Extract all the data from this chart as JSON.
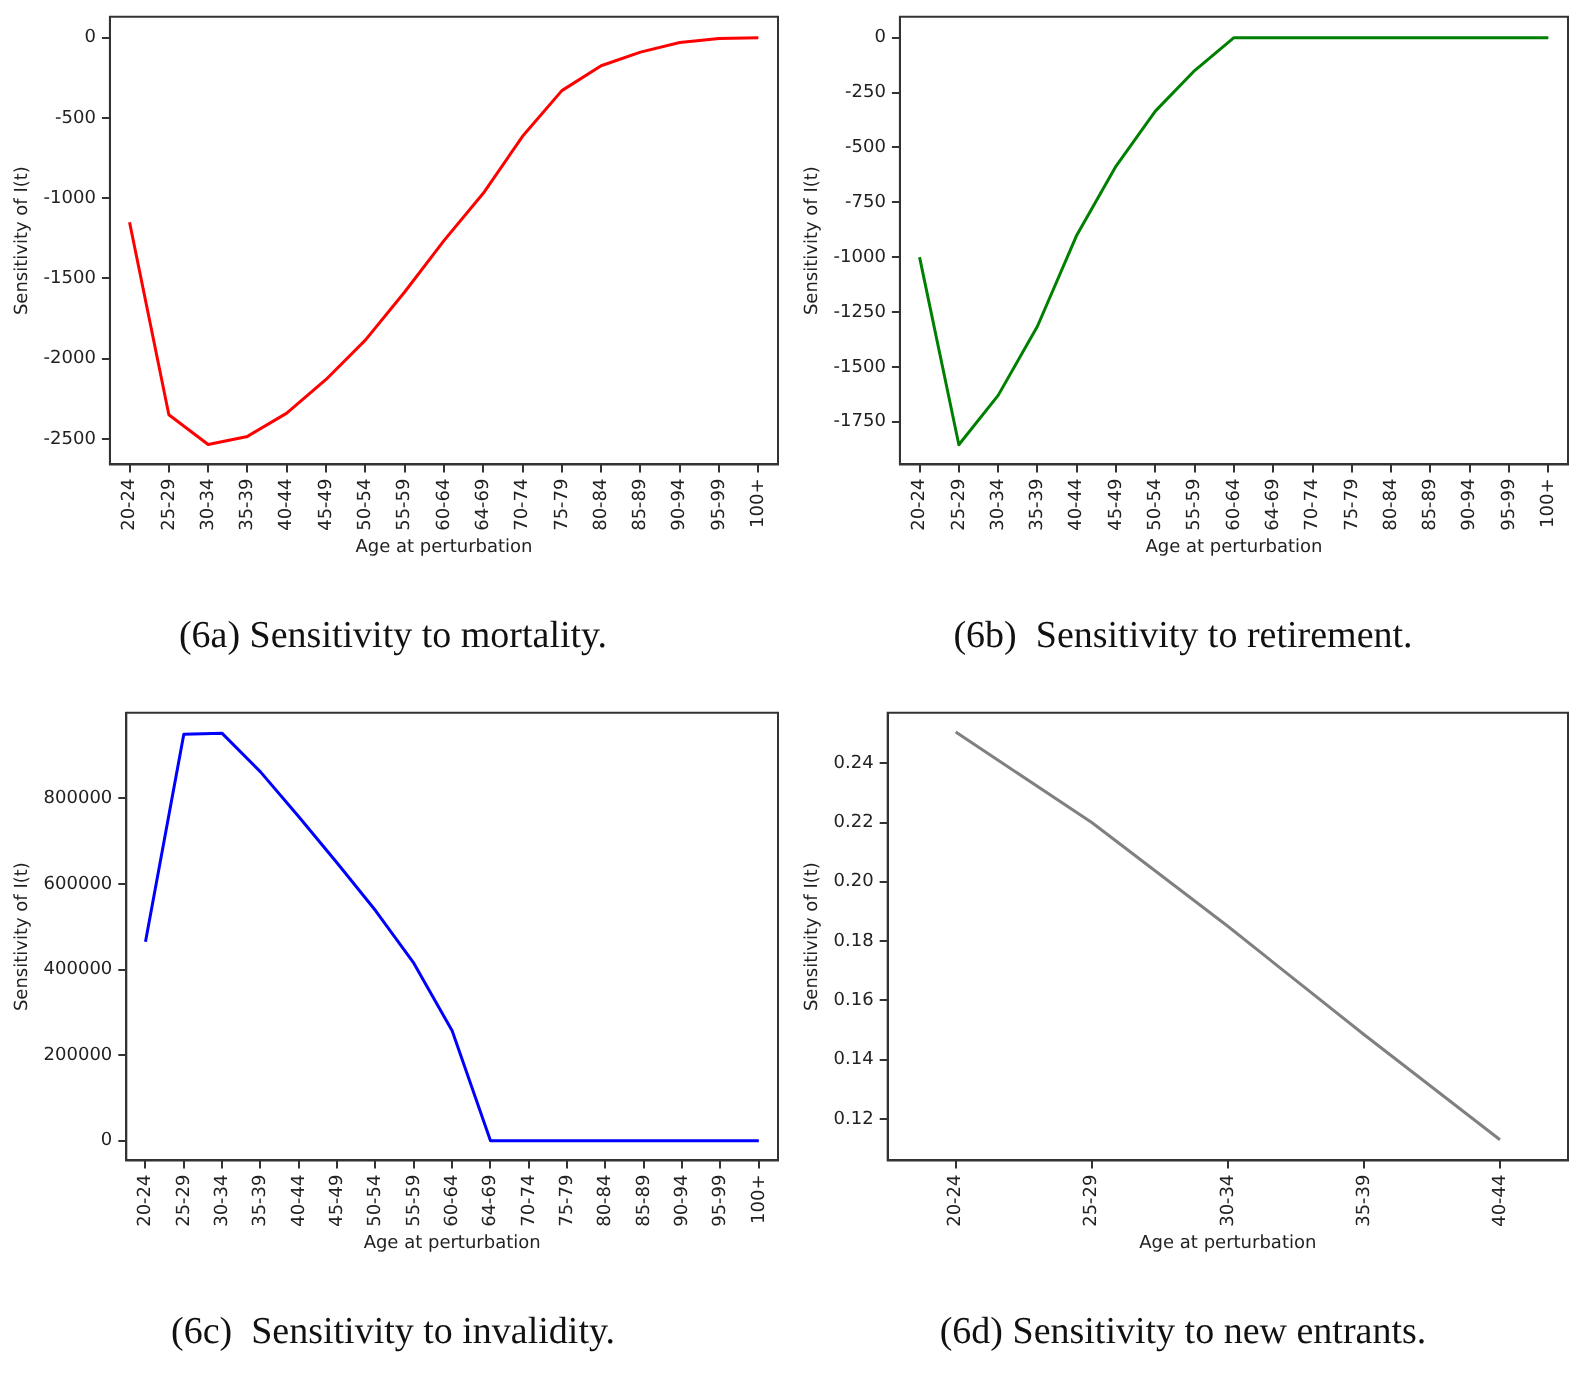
{
  "chart_data": [
    {
      "type": "line",
      "title": "(6a) Sensitivity to mortality.",
      "xlabel": "Age at perturbation",
      "ylabel": "Sensitivity of I(t)",
      "categories": [
        "20-24",
        "25-29",
        "30-34",
        "35-39",
        "40-44",
        "45-49",
        "50-54",
        "55-59",
        "60-64",
        "64-69",
        "70-74",
        "75-79",
        "80-84",
        "85-89",
        "90-94",
        "95-99",
        "100+"
      ],
      "series": [
        {
          "color": "#ff0000",
          "values": [
            -1150,
            -2350,
            -2535,
            -2485,
            -2340,
            -2130,
            -1885,
            -1585,
            -1265,
            -970,
            -615,
            -330,
            -175,
            -90,
            -30,
            -5,
            0
          ]
        }
      ],
      "ylim": [
        -2660,
        130
      ],
      "yticks": [
        0,
        -500,
        -1000,
        -1500,
        -2000,
        -2500
      ],
      "grid": false,
      "legend": false,
      "marker": "none",
      "line_style": "solid"
    },
    {
      "type": "line",
      "title": "(6b)  Sensitivity to retirement.",
      "xlabel": "Age at perturbation",
      "ylabel": "Sensitivity of I(t)",
      "categories": [
        "20-24",
        "25-29",
        "30-34",
        "35-39",
        "40-44",
        "45-49",
        "50-54",
        "55-59",
        "60-64",
        "64-69",
        "70-74",
        "75-79",
        "80-84",
        "85-89",
        "90-94",
        "95-99",
        "100+"
      ],
      "series": [
        {
          "color": "#008000",
          "values": [
            -1000,
            -1855,
            -1630,
            -1315,
            -900,
            -585,
            -335,
            -150,
            0,
            0,
            0,
            0,
            0,
            0,
            0,
            0,
            0
          ]
        }
      ],
      "ylim": [
        -1945,
        95
      ],
      "yticks": [
        0,
        -250,
        -500,
        -750,
        -1000,
        -1250,
        -1500,
        -1750
      ],
      "grid": false,
      "legend": false,
      "marker": "none",
      "line_style": "solid"
    },
    {
      "type": "line",
      "title": "(6c)  Sensitivity to invalidity.",
      "xlabel": "Age at perturbation",
      "ylabel": "Sensitivity of I(t)",
      "categories": [
        "20-24",
        "25-29",
        "30-34",
        "35-39",
        "40-44",
        "45-49",
        "50-54",
        "55-59",
        "60-64",
        "64-69",
        "70-74",
        "75-79",
        "80-84",
        "85-89",
        "90-94",
        "95-99",
        "100+"
      ],
      "series": [
        {
          "color": "#0000ff",
          "values": [
            465000,
            950000,
            952000,
            862000,
            757000,
            649000,
            538000,
            415000,
            257000,
            0,
            0,
            0,
            0,
            0,
            0,
            0,
            0
          ]
        }
      ],
      "ylim": [
        -46000,
        1000000
      ],
      "yticks": [
        0,
        200000,
        400000,
        600000,
        800000
      ],
      "grid": false,
      "legend": false,
      "marker": "none",
      "line_style": "solid"
    },
    {
      "type": "line",
      "title": "(6d) Sensitivity to new entrants.",
      "xlabel": "Age at perturbation",
      "ylabel": "Sensitivity of I(t)",
      "categories": [
        "20-24",
        "25-29",
        "30-34",
        "35-39",
        "40-44"
      ],
      "series": [
        {
          "color": "#808080",
          "values": [
            0.2505,
            0.22,
            0.185,
            0.1485,
            0.113
          ]
        }
      ],
      "ylim": [
        0.106,
        0.257
      ],
      "yticks": [
        {
          "value": 0.12,
          "label": "0.12"
        },
        {
          "value": 0.14,
          "label": "0.14"
        },
        {
          "value": 0.16,
          "label": "0.16"
        },
        {
          "value": 0.18,
          "label": "0.18"
        },
        {
          "value": 0.2,
          "label": "0.20"
        },
        {
          "value": 0.22,
          "label": "0.22"
        },
        {
          "value": 0.24,
          "label": "0.24"
        }
      ],
      "grid": false,
      "legend": false,
      "marker": "none",
      "line_style": "solid"
    }
  ]
}
